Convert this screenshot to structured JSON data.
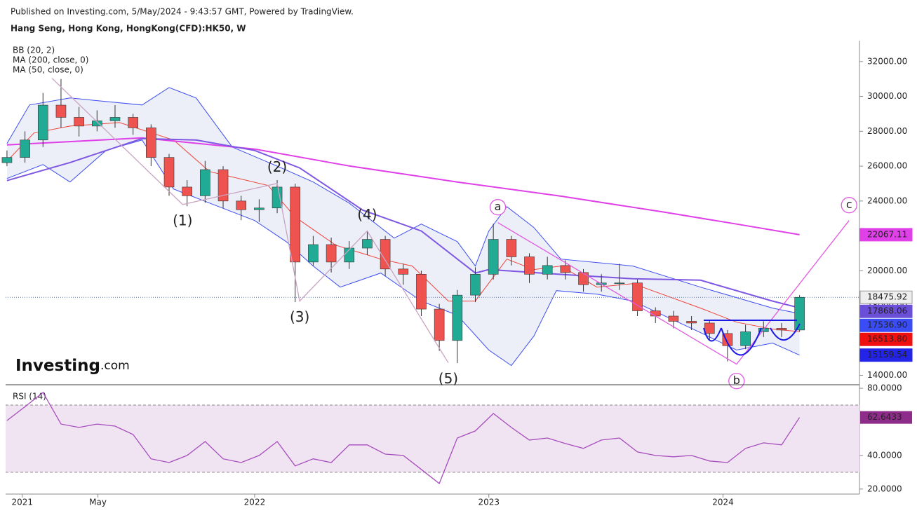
{
  "header": {
    "published": "Published on Investing.com, 5/May/2024 - 9:43:57 GMT, Powered by TradingView.",
    "symbol": "Hang Seng, Hong Kong, HongKong(CFD):HK50, W"
  },
  "logo": {
    "brand": "Investing",
    "suffix": ".com"
  },
  "chart_data": [
    {
      "type": "candlestick",
      "legend": [
        "BB (20, 2)",
        "MA (200, close, 0)",
        "MA (50, close, 0)"
      ],
      "x": [
        0,
        4,
        8,
        12,
        16,
        20,
        24,
        28,
        32,
        36,
        40,
        44,
        48,
        52,
        56,
        60,
        64,
        68,
        72,
        76,
        80,
        84,
        88,
        92,
        96,
        100,
        104,
        108,
        112,
        116,
        120,
        124,
        128,
        132,
        136,
        140,
        144,
        148,
        152,
        156,
        160,
        164,
        168,
        172,
        176
      ],
      "open": [
        26200,
        26500,
        27500,
        29500,
        28800,
        28300,
        28600,
        28800,
        28200,
        26500,
        24800,
        24300,
        25800,
        24000,
        23500,
        23600,
        24800,
        20500,
        21500,
        20500,
        21300,
        21800,
        20100,
        19800,
        17800,
        16000,
        18600,
        19800,
        21800,
        20800,
        19800,
        20300,
        19900,
        19200,
        19300,
        19300,
        17700,
        17400,
        17100,
        17000,
        16400,
        15700,
        16500,
        16700,
        16600
      ],
      "high": [
        26900,
        28000,
        30200,
        31000,
        29400,
        29200,
        29500,
        29000,
        28400,
        26700,
        25200,
        26300,
        26000,
        24300,
        24100,
        25200,
        25000,
        22000,
        21900,
        21700,
        22300,
        22000,
        20400,
        20000,
        18100,
        18900,
        20200,
        22700,
        22000,
        21000,
        20800,
        20600,
        20100,
        19800,
        20400,
        19500,
        17900,
        17700,
        17400,
        17200,
        16600,
        16900,
        17100,
        17000,
        18600
      ],
      "low": [
        26000,
        26200,
        27100,
        28200,
        27700,
        28000,
        28200,
        27800,
        26000,
        24300,
        23700,
        23900,
        23600,
        22900,
        22800,
        23300,
        18200,
        20300,
        19900,
        20100,
        20900,
        19700,
        19200,
        17400,
        15400,
        14700,
        18200,
        19500,
        20300,
        19300,
        19500,
        19500,
        18800,
        18800,
        18900,
        17400,
        17000,
        16700,
        16600,
        16000,
        14800,
        15500,
        16200,
        16200,
        16500
      ],
      "close": [
        26500,
        27500,
        29500,
        28800,
        28300,
        28600,
        28800,
        28200,
        26500,
        24800,
        24300,
        25800,
        24000,
        23500,
        23600,
        24800,
        20500,
        21500,
        20500,
        21300,
        21800,
        20100,
        19800,
        17800,
        16000,
        18600,
        19800,
        21800,
        20800,
        19800,
        20300,
        19900,
        19200,
        19300,
        19300,
        17700,
        17400,
        17100,
        17000,
        16400,
        15700,
        16500,
        16700,
        16600,
        18475.92
      ],
      "up_color": "#22ab94",
      "down_color": "#ef5350",
      "xlim": [
        -0.3,
        189.3
      ],
      "ylim": [
        13500,
        33200
      ],
      "yticks": [
        {
          "value": 14000,
          "label": "14000.00"
        },
        {
          "value": 16000,
          "label": "16000.00"
        },
        {
          "value": 18000,
          "label": "18000.00"
        },
        {
          "value": 20000,
          "label": "20000.00"
        },
        {
          "value": 22000,
          "label": "22000.00"
        },
        {
          "value": 24000,
          "label": "24000.00"
        },
        {
          "value": 26000,
          "label": "26000.00"
        },
        {
          "value": 28000,
          "label": "28000.00"
        },
        {
          "value": 30000,
          "label": "30000.00"
        },
        {
          "value": 32000,
          "label": "32000.00"
        }
      ],
      "xticks": [
        {
          "value": 3.4,
          "label": "2021"
        },
        {
          "value": 20.2,
          "label": "May"
        },
        {
          "value": 55,
          "label": "2022"
        },
        {
          "value": 107,
          "label": "2023"
        },
        {
          "value": 159,
          "label": "2024"
        }
      ],
      "bb": {
        "color": "#3d4ef0",
        "basis_color": "#f0453a",
        "fill": "#eceef8",
        "upper": {
          "x": [
            0,
            5,
            14,
            30,
            36,
            42,
            50,
            61,
            68,
            76,
            86,
            92,
            100,
            104,
            107,
            111,
            117,
            123,
            139,
            154,
            162,
            170,
            176
          ],
          "values": [
            27300,
            29510,
            29910,
            29510,
            30510,
            29910,
            27100,
            25890,
            25090,
            23880,
            21870,
            22680,
            21670,
            20270,
            22280,
            23680,
            22480,
            20670,
            20270,
            19060,
            18460,
            17860,
            17540
          ]
        },
        "basis": {
          "x": [
            0,
            6,
            14,
            25,
            37,
            45,
            58,
            64,
            73,
            83,
            90,
            98,
            104,
            111,
            117,
            123,
            131,
            139,
            154,
            162,
            170,
            176
          ],
          "values": [
            26290,
            27900,
            28300,
            28500,
            27500,
            25690,
            24890,
            23080,
            21470,
            20670,
            20270,
            18260,
            18260,
            20670,
            20070,
            20270,
            19060,
            19260,
            17860,
            17050,
            16650,
            16510
          ]
        },
        "lower": {
          "x": [
            0,
            8,
            14,
            22,
            30,
            37,
            45,
            55,
            62,
            68,
            74,
            83,
            92,
            100,
            107,
            112,
            117,
            122,
            131,
            139,
            154,
            162,
            170,
            176
          ],
          "values": [
            25290,
            26090,
            25090,
            26900,
            27500,
            24690,
            23880,
            22880,
            21670,
            20270,
            19060,
            19870,
            18260,
            17450,
            15450,
            14560,
            16250,
            18860,
            18660,
            18260,
            16450,
            15450,
            15850,
            15160
          ]
        }
      },
      "ma200": {
        "color": "#e040e8",
        "x": [
          0,
          30,
          55,
          76,
          100,
          123,
          146,
          162,
          176
        ],
        "values": [
          27220,
          27620,
          26980,
          26010,
          25090,
          24280,
          23360,
          22680,
          22067.11
        ]
      },
      "ma50": {
        "color": "#7e57e2",
        "x": [
          0,
          14,
          30,
          42,
          55,
          65,
          79,
          92,
          104,
          107,
          123,
          139,
          154,
          170,
          176
        ],
        "values": [
          25170,
          26210,
          27580,
          27500,
          26900,
          25900,
          23480,
          22280,
          19870,
          20070,
          19790,
          19540,
          19460,
          18260,
          17870
        ]
      },
      "price_labels": [
        {
          "value": 22067.11,
          "label": "22067.11",
          "color": "#e040e8"
        },
        {
          "value": 18475.92,
          "label": "18475.92",
          "color": "#eeeeee"
        },
        {
          "value": 17868.06,
          "label": "17868.06",
          "color": "#6c4fd8"
        },
        {
          "value": 17536.9,
          "label": "17536.90",
          "color": "#3a4cf5"
        },
        {
          "value": 16513.8,
          "label": "16513.80",
          "color": "#f01010"
        },
        {
          "value": 15159.54,
          "label": "15159.54",
          "color": "#2424e6"
        }
      ],
      "waves": {
        "color": "#c9a4c2",
        "label_color": "#8b5a83",
        "x": [
          10,
          39,
          60,
          65,
          80,
          98
        ],
        "y": [
          31040,
          23800,
          25010,
          18260,
          22280,
          14720
        ],
        "labels": [
          null,
          "(1)",
          "(2)",
          "(3)",
          "(4)",
          "(5)"
        ]
      },
      "abc": {
        "color": "#e05ae0",
        "label_color": "#a020b0",
        "x": [
          109,
          162,
          187
        ],
        "y": [
          22760,
          14640,
          22880
        ],
        "labels": [
          "a",
          "b",
          "c"
        ]
      }
    },
    {
      "type": "line",
      "name": "RSI (14)",
      "color": "#a64dbd",
      "band_fill": "#f1e4f2",
      "x": [
        0,
        4,
        8,
        12,
        16,
        20,
        24,
        28,
        32,
        36,
        40,
        44,
        48,
        52,
        56,
        60,
        64,
        68,
        72,
        76,
        80,
        84,
        88,
        92,
        96,
        100,
        104,
        108,
        112,
        116,
        120,
        124,
        128,
        132,
        136,
        140,
        144,
        148,
        152,
        156,
        160,
        164,
        168,
        172,
        176
      ],
      "values": [
        60.8,
        69,
        77.5,
        58.7,
        56.7,
        58.7,
        57.5,
        52.5,
        38,
        35.8,
        40,
        48.3,
        38,
        35.8,
        40,
        48.3,
        33.8,
        38,
        35.8,
        46.3,
        46.3,
        40.8,
        40,
        31.7,
        23.3,
        50.4,
        54.6,
        65,
        56.7,
        49.2,
        50.4,
        47.1,
        44.2,
        49.2,
        50.4,
        42.1,
        40,
        39.2,
        40,
        36.7,
        35.8,
        44.2,
        47.5,
        46.3,
        62.6433
      ],
      "xlim": [
        -0.3,
        189.3
      ],
      "ylim": [
        17,
        81.7
      ],
      "yticks": [
        {
          "value": 80,
          "label": "80.0000"
        },
        {
          "value": 40,
          "label": "40.0000"
        },
        {
          "value": 20,
          "label": "20.0000"
        }
      ],
      "bands": [
        30,
        70
      ]
    }
  ]
}
